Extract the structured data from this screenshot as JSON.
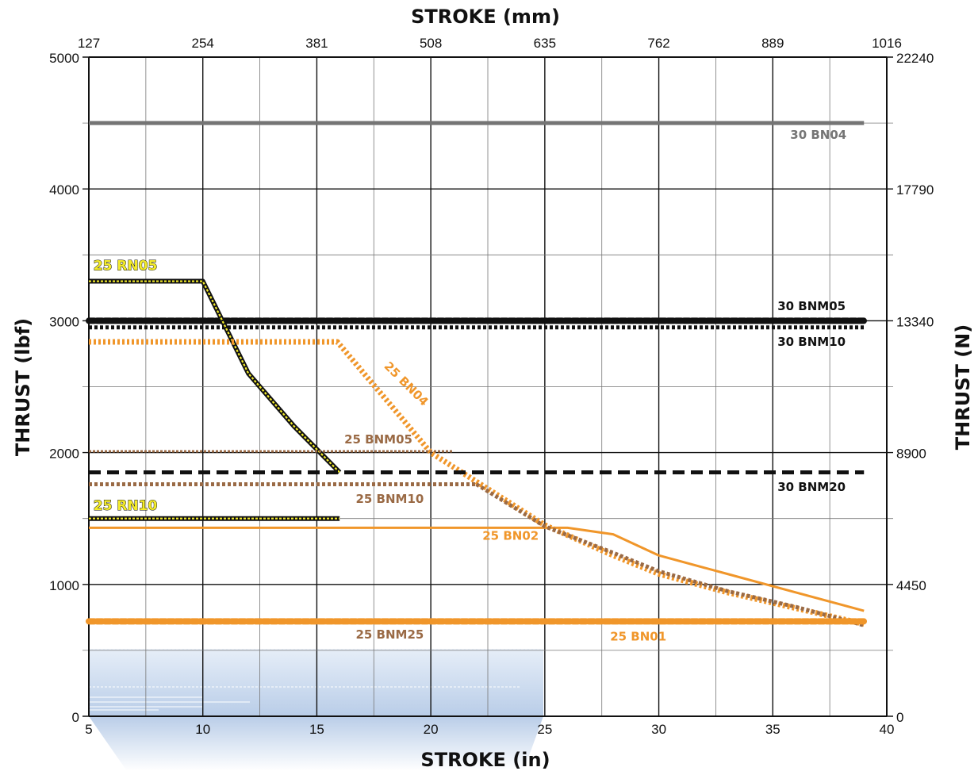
{
  "chart_data": {
    "type": "line",
    "xlabel": "STROKE (in)",
    "x2label": "STROKE (mm)",
    "ylabel": "THRUST (lbf)",
    "y2label": "THRUST (N)",
    "xlim": [
      5,
      40
    ],
    "ylim": [
      0,
      5000
    ],
    "grid": true,
    "legend": "inline labels",
    "x_ticks": [
      "5",
      "10",
      "15",
      "20",
      "25",
      "30",
      "35",
      "40"
    ],
    "x2_ticks": [
      "127",
      "254",
      "381",
      "508",
      "635",
      "762",
      "889",
      "1016"
    ],
    "y_ticks": [
      "0",
      "1000",
      "2000",
      "3000",
      "4000",
      "5000"
    ],
    "y2_ticks": [
      "0",
      "4450",
      "8900",
      "13340",
      "17790",
      "22240"
    ],
    "series": [
      {
        "name": "30 BN04",
        "color": "#757575",
        "style": "solid-thick",
        "x": [
          5,
          39
        ],
        "y": [
          4500,
          4500
        ]
      },
      {
        "name": "30 BNM05",
        "color": "#111111",
        "style": "beaded",
        "x": [
          5,
          39
        ],
        "y": [
          3000,
          3000
        ]
      },
      {
        "name": "30 BNM10",
        "color": "#111111",
        "style": "dotted",
        "x": [
          5,
          39
        ],
        "y": [
          2950,
          2950
        ]
      },
      {
        "name": "25 RN05",
        "color": "#f4ec2a",
        "style": "yellow-on-black",
        "x": [
          5,
          10,
          12,
          14,
          16
        ],
        "y": [
          3300,
          3300,
          2600,
          2200,
          1850
        ]
      },
      {
        "name": "25 BN04",
        "color": "#f0962a",
        "style": "dotted-thick",
        "x": [
          5,
          15.9,
          20,
          25,
          28,
          30,
          33,
          36,
          39
        ],
        "y": [
          2840,
          2840,
          2000,
          1450,
          1220,
          1080,
          940,
          820,
          700
        ]
      },
      {
        "name": "25 BNM05",
        "color": "#9a6a45",
        "style": "dotted-thin",
        "x": [
          5,
          21
        ],
        "y": [
          2010,
          2010
        ]
      },
      {
        "name": "30 BNM20",
        "color": "#111111",
        "style": "dashed",
        "x": [
          5,
          39
        ],
        "y": [
          1850,
          1850
        ]
      },
      {
        "name": "25 BNM10",
        "color": "#9a6a45",
        "style": "dotted",
        "x": [
          5,
          22
        ],
        "y": [
          1760,
          1760
        ]
      },
      {
        "name": "25 RN10",
        "color": "#f4ec2a",
        "style": "yellow-on-black",
        "x": [
          5,
          16
        ],
        "y": [
          1500,
          1500
        ]
      },
      {
        "name": "25 BN02",
        "color": "#f0962a",
        "style": "solid",
        "x": [
          5,
          26,
          28,
          30,
          33,
          36,
          39
        ],
        "y": [
          1430,
          1430,
          1380,
          1220,
          1080,
          940,
          800
        ]
      },
      {
        "name": "25 BNM25",
        "color": "#9a6a45",
        "style": "dotted",
        "x": [
          22,
          25,
          28,
          30,
          33,
          36,
          39
        ],
        "y": [
          1760,
          1440,
          1240,
          1100,
          950,
          830,
          690
        ]
      },
      {
        "name": "25 BN01",
        "color": "#f0962a",
        "style": "beaded",
        "x": [
          5,
          39
        ],
        "y": [
          720,
          720
        ]
      }
    ],
    "series_labels": [
      {
        "series": "30 BN04",
        "text": "30 BN04",
        "color": "#757575"
      },
      {
        "series": "30 BNM05",
        "text": "30 BNM05",
        "color": "#111111"
      },
      {
        "series": "30 BNM10",
        "text": "30 BNM10",
        "color": "#111111"
      },
      {
        "series": "25 RN05",
        "text": "25 RN05",
        "color": "#f4ec2a"
      },
      {
        "series": "25 BN04",
        "text": "25 BN04",
        "color": "#f0962a"
      },
      {
        "series": "25 BNM05",
        "text": "25 BNM05",
        "color": "#9a6a45"
      },
      {
        "series": "30 BNM20",
        "text": "30 BNM20",
        "color": "#111111"
      },
      {
        "series": "25 BNM10",
        "text": "25 BNM10",
        "color": "#9a6a45"
      },
      {
        "series": "25 RN10",
        "text": "25 RN10",
        "color": "#f4ec2a"
      },
      {
        "series": "25 BN02",
        "text": "25 BN02",
        "color": "#f0962a"
      },
      {
        "series": "25 BNM25",
        "text": "25 BNM25",
        "color": "#9a6a45"
      },
      {
        "series": "25 BN01",
        "text": "25 BN01",
        "color": "#f0962a"
      }
    ]
  }
}
